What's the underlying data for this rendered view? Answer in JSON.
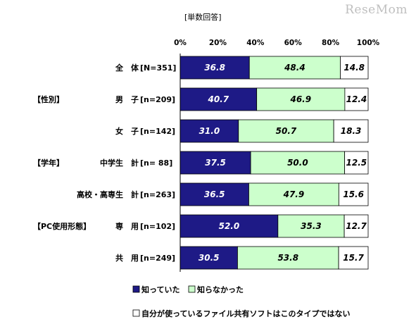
{
  "watermark": "ReseMom",
  "note": "[単数回答]",
  "chart_data": {
    "type": "bar",
    "orientation": "horizontal",
    "stacked": true,
    "percent_stacked": true,
    "xlim": [
      0,
      100
    ],
    "ticks": [
      "0%",
      "20%",
      "40%",
      "60%",
      "80%",
      "100%"
    ],
    "grid": false,
    "legend_position": "bottom-left",
    "categories": [
      {
        "group": "",
        "label": "全　体",
        "n": "[N=351]"
      },
      {
        "group": "【性別】",
        "label": "男　子",
        "n": "[n=209]"
      },
      {
        "group": "",
        "label": "女　子",
        "n": "[n=142]"
      },
      {
        "group": "【学年】",
        "label": "中学生　計",
        "n": "[n= 88]"
      },
      {
        "group": "",
        "label": "高校・高専生　計",
        "n": "[n=263]"
      },
      {
        "group": "【PC使用形態】",
        "label": "専　用",
        "n": "[n=102]"
      },
      {
        "group": "",
        "label": "共　用",
        "n": "[n=249]"
      }
    ],
    "series": [
      {
        "name": "知っていた",
        "color": "#1e1a86",
        "label_color": "#ffffff",
        "values": [
          36.8,
          40.7,
          31.0,
          37.5,
          36.5,
          52.0,
          30.5
        ]
      },
      {
        "name": "知らなかった",
        "color": "#ccffcc",
        "label_color": "#000000",
        "values": [
          48.4,
          46.9,
          50.7,
          50.0,
          47.9,
          35.3,
          53.8
        ]
      },
      {
        "name": "自分が使っているファイル共有ソフトはこのタイプではない",
        "color": "#ffffff",
        "label_color": "#000000",
        "values": [
          14.8,
          12.4,
          18.3,
          12.5,
          15.6,
          12.7,
          15.7
        ]
      }
    ]
  }
}
